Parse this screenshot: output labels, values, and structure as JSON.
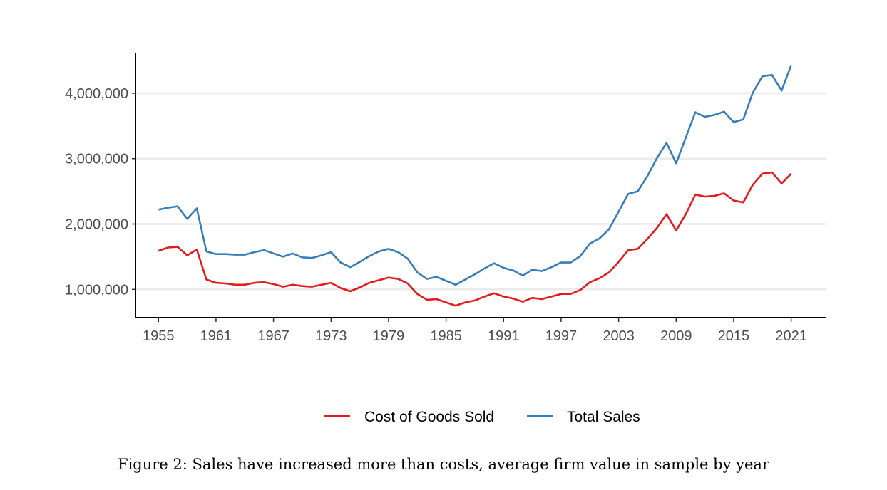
{
  "chart_data": {
    "type": "line",
    "title": "",
    "xlabel": "",
    "ylabel": "",
    "x": [
      1955,
      1956,
      1957,
      1958,
      1959,
      1960,
      1961,
      1962,
      1963,
      1964,
      1965,
      1966,
      1967,
      1968,
      1969,
      1970,
      1971,
      1972,
      1973,
      1974,
      1975,
      1976,
      1977,
      1978,
      1979,
      1980,
      1981,
      1982,
      1983,
      1984,
      1985,
      1986,
      1987,
      1988,
      1989,
      1990,
      1991,
      1992,
      1993,
      1994,
      1995,
      1996,
      1997,
      1998,
      1999,
      2000,
      2001,
      2002,
      2003,
      2004,
      2005,
      2006,
      2007,
      2008,
      2009,
      2010,
      2011,
      2012,
      2013,
      2014,
      2015,
      2016,
      2017,
      2018,
      2019,
      2020,
      2021
    ],
    "series": [
      {
        "name": "Cost of Goods Sold",
        "color": "#e41a1c",
        "values": [
          1590000,
          1640000,
          1650000,
          1520000,
          1610000,
          1150000,
          1100000,
          1090000,
          1070000,
          1070000,
          1100000,
          1110000,
          1080000,
          1040000,
          1070000,
          1050000,
          1040000,
          1070000,
          1100000,
          1020000,
          970000,
          1030000,
          1100000,
          1140000,
          1180000,
          1160000,
          1090000,
          930000,
          840000,
          850000,
          800000,
          750000,
          800000,
          830000,
          890000,
          940000,
          890000,
          860000,
          810000,
          870000,
          850000,
          890000,
          930000,
          930000,
          990000,
          1110000,
          1170000,
          1260000,
          1420000,
          1600000,
          1620000,
          1770000,
          1940000,
          2150000,
          1900000,
          2150000,
          2450000,
          2420000,
          2430000,
          2470000,
          2360000,
          2330000,
          2600000,
          2770000,
          2790000,
          2620000,
          2770000
        ]
      },
      {
        "name": "Total Sales",
        "color": "#377eb8",
        "values": [
          2220000,
          2250000,
          2270000,
          2080000,
          2240000,
          1580000,
          1540000,
          1540000,
          1530000,
          1530000,
          1570000,
          1600000,
          1550000,
          1500000,
          1550000,
          1490000,
          1480000,
          1520000,
          1570000,
          1410000,
          1340000,
          1420000,
          1510000,
          1580000,
          1620000,
          1570000,
          1470000,
          1260000,
          1160000,
          1190000,
          1130000,
          1070000,
          1150000,
          1230000,
          1320000,
          1400000,
          1330000,
          1290000,
          1210000,
          1300000,
          1280000,
          1340000,
          1410000,
          1410000,
          1510000,
          1700000,
          1780000,
          1920000,
          2190000,
          2460000,
          2500000,
          2730000,
          3010000,
          3240000,
          2930000,
          3320000,
          3710000,
          3640000,
          3670000,
          3720000,
          3560000,
          3600000,
          4010000,
          4260000,
          4280000,
          4040000,
          4430000
        ]
      }
    ],
    "xticks": [
      "1955",
      "1961",
      "1967",
      "1973",
      "1979",
      "1985",
      "1991",
      "1997",
      "2003",
      "2009",
      "2015",
      "2021"
    ],
    "yticks": [
      {
        "value": 1000000,
        "label": "1,000,000"
      },
      {
        "value": 2000000,
        "label": "2,000,000"
      },
      {
        "value": 3000000,
        "label": "3,000,000"
      },
      {
        "value": 4000000,
        "label": "4,000,000"
      }
    ],
    "xlim": [
      1952.6,
      2024.6
    ],
    "ylim": [
      567000,
      4610000
    ],
    "grid": "horizontal-major",
    "legend": "bottom"
  },
  "caption": "Figure 2: Sales have increased more than costs, average firm value in sample by year"
}
